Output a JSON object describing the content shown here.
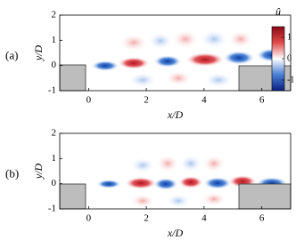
{
  "chart_data": [
    {
      "type": "contour",
      "panel_label": "(a)",
      "xlabel": "x/D",
      "ylabel": "y/D",
      "xlim": [
        -1,
        7
      ],
      "ylim": [
        -1,
        2
      ],
      "xticks": [
        0,
        2,
        4,
        6
      ],
      "yticks": [
        -1,
        0,
        1,
        2
      ],
      "colorbar_title": "û",
      "clim": [
        -1.5,
        1.5
      ],
      "cticks": [
        1,
        0,
        -1
      ]
    },
    {
      "type": "contour",
      "panel_label": "(b)",
      "xlabel": "x/D",
      "ylabel": "y/D",
      "xlim": [
        -1,
        7
      ],
      "ylim": [
        -1,
        2
      ],
      "xticks": [
        0,
        2,
        4,
        6
      ],
      "yticks": [
        -1,
        0,
        1,
        2
      ]
    }
  ]
}
